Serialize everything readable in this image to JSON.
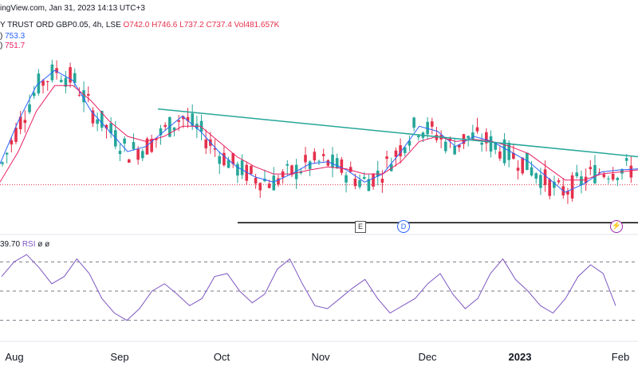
{
  "header": {
    "source_line": "ingView.com, Jan 31, 2023 14:13 UTC+3",
    "symbol": "Y TRUST ORD GBP0.05, 4h, LSE",
    "ohlc": {
      "o": "O742.0",
      "h": "H746.6",
      "l": "L737.2",
      "c": "C737.4",
      "vol": "Vol481.657K"
    },
    "ma1": {
      "prefix": ")",
      "value": "753.3",
      "color": "#2962ff"
    },
    "ma2": {
      "prefix": ")",
      "value": "751.7",
      "color": "#e91e63"
    },
    "rsi": {
      "prefix": "39.70",
      "suffix": "ø ø"
    }
  },
  "badges": {
    "earnings": "E",
    "dividend": "D",
    "split": "⚡"
  },
  "chart_data": [
    {
      "type": "candlestick",
      "x_labels": [
        "Aug",
        "Sep",
        "Oct",
        "Nov",
        "Dec",
        "2023",
        "Feb"
      ],
      "series": [
        {
          "name": "753.3",
          "color": "#2962ff",
          "values": [
            758,
            800,
            835,
            850,
            840,
            810,
            790,
            770,
            775,
            790,
            805,
            790,
            770,
            755,
            745,
            740,
            748,
            758,
            760,
            752,
            740,
            748,
            770,
            795,
            790,
            775,
            785,
            780,
            770,
            760,
            745,
            730,
            738,
            750,
            752,
            753
          ]
        },
        {
          "name": "751.7",
          "color": "#e91e63",
          "values": [
            740,
            770,
            810,
            835,
            835,
            820,
            800,
            785,
            780,
            785,
            795,
            795,
            780,
            765,
            755,
            748,
            748,
            752,
            755,
            753,
            748,
            748,
            760,
            780,
            785,
            780,
            782,
            780,
            775,
            768,
            755,
            742,
            742,
            748,
            750,
            752
          ]
        }
      ],
      "trendline": {
        "color": "#26a69a",
        "from": {
          "x": "Sep",
          "y": 812
        },
        "to": {
          "x": "Feb",
          "y": 765
        }
      },
      "support": {
        "color": "#000000",
        "y": 700
      },
      "price_line": {
        "color": "#e5304c",
        "y": 737.4
      },
      "ylim": [
        690,
        880
      ],
      "colors": {
        "up": "#26a69a",
        "down": "#e5304c"
      }
    },
    {
      "type": "line",
      "title": "RSI",
      "color": "#7e57c2",
      "values": [
        60,
        70,
        75,
        66,
        55,
        60,
        72,
        62,
        45,
        35,
        30,
        38,
        50,
        55,
        48,
        40,
        45,
        60,
        62,
        50,
        42,
        48,
        65,
        72,
        55,
        40,
        38,
        45,
        52,
        58,
        45,
        35,
        40,
        45,
        55,
        62,
        48,
        38,
        45,
        62,
        72,
        58,
        50,
        40,
        35,
        45,
        60,
        68,
        62,
        40
      ],
      "levels": [
        70,
        50,
        30
      ],
      "ylim": [
        20,
        80
      ]
    }
  ]
}
